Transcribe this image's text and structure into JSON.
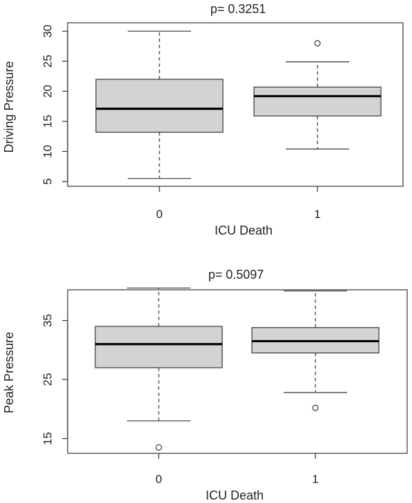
{
  "chart_data": [
    {
      "type": "box",
      "title": "p= 0.3251",
      "xlabel": "ICU Death",
      "ylabel": "Driving Pressure",
      "categories": [
        "0",
        "1"
      ],
      "yticks": [
        5,
        10,
        15,
        20,
        25,
        30
      ],
      "ylim": [
        4.2,
        31.4
      ],
      "boxes": [
        {
          "category": "0",
          "min": 5.5,
          "q1": 13.2,
          "median": 17.1,
          "q3": 22.0,
          "max": 30.0,
          "outliers": []
        },
        {
          "category": "1",
          "min": 10.4,
          "q1": 15.9,
          "median": 19.2,
          "q3": 20.7,
          "max": 24.9,
          "outliers": [
            28.0
          ]
        }
      ]
    },
    {
      "type": "box",
      "title": "p= 0.5097",
      "xlabel": "ICU Death",
      "ylabel": "Peak Pressure",
      "categories": [
        "0",
        "1"
      ],
      "yticks": [
        15,
        25,
        35
      ],
      "ylim": [
        12.5,
        40.2
      ],
      "boxes": [
        {
          "category": "0",
          "min": 18.0,
          "q1": 27.0,
          "median": 31.0,
          "q3": 34.0,
          "max": 40.5,
          "outliers": [
            13.5
          ]
        },
        {
          "category": "1",
          "min": 22.8,
          "q1": 29.5,
          "median": 31.5,
          "q3": 33.8,
          "max": 40.0,
          "outliers": [
            20.2
          ]
        }
      ]
    }
  ]
}
